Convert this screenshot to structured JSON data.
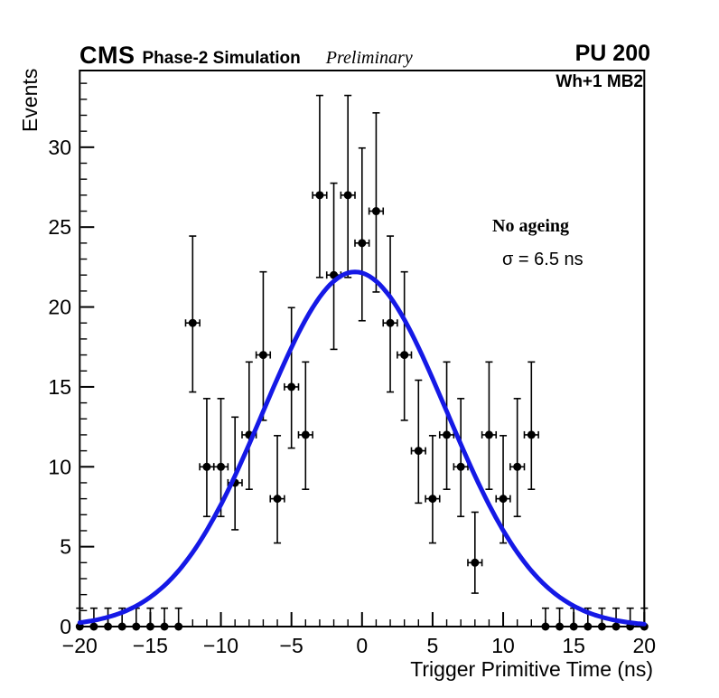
{
  "header": {
    "experiment": "CMS",
    "simulation_label": "Phase-2 Simulation",
    "status": "Preliminary",
    "pileup": "PU 200"
  },
  "region_label": "Wh+1 MB2",
  "annotation": {
    "title": "No ageing",
    "sigma": "σ = 6.5 ns"
  },
  "chart_data": {
    "type": "scatter",
    "title": "",
    "xlabel": "Trigger Primitive Time (ns)",
    "ylabel": "Events",
    "xlim": [
      -20,
      20
    ],
    "ylim": [
      0,
      34.8
    ],
    "grid": false,
    "legend_position": "none",
    "x_minor_step": 1,
    "y_minor_step": 1,
    "x_ticks": [
      {
        "value": -20,
        "label": "−20"
      },
      {
        "value": -15,
        "label": "−15"
      },
      {
        "value": -10,
        "label": "−10"
      },
      {
        "value": -5,
        "label": "−5"
      },
      {
        "value": 0,
        "label": "0"
      },
      {
        "value": 5,
        "label": "5"
      },
      {
        "value": 10,
        "label": "10"
      },
      {
        "value": 15,
        "label": "15"
      },
      {
        "value": 20,
        "label": "20"
      }
    ],
    "y_ticks": [
      {
        "value": 0,
        "label": "0"
      },
      {
        "value": 5,
        "label": "5"
      },
      {
        "value": 10,
        "label": "10"
      },
      {
        "value": 15,
        "label": "15"
      },
      {
        "value": 20,
        "label": "20"
      },
      {
        "value": 25,
        "label": "25"
      },
      {
        "value": 30,
        "label": "30"
      }
    ],
    "points": {
      "color": "#000000",
      "x_err": 0.5,
      "x": [
        -20,
        -19,
        -18,
        -17,
        -16,
        -15,
        -14,
        -13,
        -12,
        -11,
        -10,
        -9,
        -8,
        -7,
        -6,
        -5,
        -4,
        -3,
        -2,
        -1,
        0,
        1,
        2,
        3,
        4,
        5,
        6,
        7,
        8,
        9,
        10,
        11,
        12,
        13,
        14,
        15,
        16,
        17,
        18,
        19,
        20
      ],
      "y": [
        0,
        0,
        0,
        0,
        0,
        0,
        0,
        0,
        19,
        10,
        10,
        9,
        12,
        17,
        8,
        15,
        12,
        27,
        22,
        27,
        24,
        26,
        19,
        17,
        11,
        8,
        12,
        10,
        4,
        12,
        8,
        10,
        12,
        0,
        0,
        0,
        0,
        0,
        0,
        0,
        0
      ],
      "err_up": [
        1.15,
        1.15,
        1.15,
        1.15,
        1.15,
        1.15,
        1.15,
        1.15,
        5.44,
        4.27,
        4.27,
        4.11,
        4.56,
        5.2,
        3.95,
        4.96,
        4.56,
        6.24,
        5.75,
        6.24,
        5.95,
        6.15,
        5.44,
        5.2,
        4.42,
        3.95,
        4.56,
        4.27,
        3.16,
        4.56,
        3.95,
        4.27,
        4.56,
        1.15,
        1.15,
        1.15,
        1.15,
        1.15,
        1.15,
        1.15,
        1.15
      ],
      "err_low": [
        0,
        0,
        0,
        0,
        0,
        0,
        0,
        0,
        4.32,
        3.11,
        3.11,
        2.94,
        3.41,
        4.09,
        2.77,
        3.83,
        3.41,
        5.15,
        4.65,
        5.15,
        4.86,
        5.06,
        4.32,
        4.09,
        3.27,
        2.77,
        3.41,
        3.11,
        1.91,
        3.41,
        2.77,
        3.11,
        3.41,
        0,
        0,
        0,
        0,
        0,
        0,
        0,
        0
      ]
    },
    "fit": {
      "shape": "gaussian",
      "amplitude": 22.2,
      "mean": -0.5,
      "sigma_ns": 6.5,
      "color": "#1519e6"
    }
  }
}
